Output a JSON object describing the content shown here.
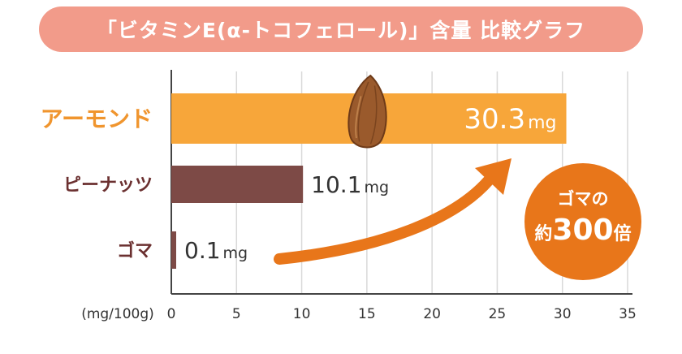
{
  "title": "「ビタミンE(α-トコフェロール)」含量 比較グラフ",
  "colors": {
    "title_pill": "#f29b8a",
    "almond": "#f7a63a",
    "peanut": "#7d4a46",
    "sesame": "#7d4a46",
    "almond_label": "#f0952e",
    "dark_label": "#6b3030",
    "callout": "#e8761a",
    "grid": "#d9d9d9",
    "axis": "#444444"
  },
  "callout": {
    "line1": "ゴマの",
    "prefix": "約",
    "number": "300",
    "suffix": "倍"
  },
  "icons": [
    "almond-icon",
    "arrow-icon"
  ],
  "chart_data": {
    "type": "bar",
    "orientation": "horizontal",
    "title": "「ビタミンE(α-トコフェロール)」含量 比較グラフ",
    "unit_label": "(mg/100g)",
    "xlim": [
      0,
      35
    ],
    "x_ticks": [
      "0",
      "5",
      "10",
      "15",
      "20",
      "25",
      "30",
      "35"
    ],
    "grid": true,
    "categories": [
      "アーモンド",
      "ピーナッツ",
      "ゴマ"
    ],
    "values": [
      30.3,
      10.1,
      0.1
    ],
    "value_labels": [
      {
        "number": "30.3",
        "unit": "mg"
      },
      {
        "number": "10.1",
        "unit": "mg"
      },
      {
        "number": "0.1",
        "unit": "mg"
      }
    ]
  }
}
